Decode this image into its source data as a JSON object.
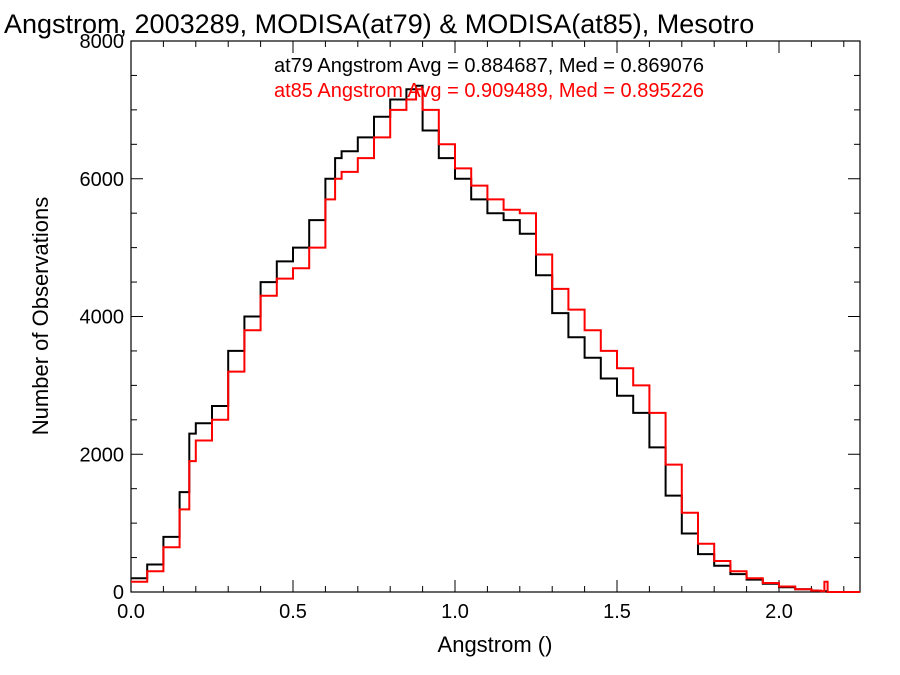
{
  "chart_data": {
    "type": "line",
    "step": true,
    "title": "Angstrom, 2003289, MODISA(at79) & MODISA(at85), Mesotro",
    "xlabel": "Angstrom ()",
    "ylabel": "Number of Observations",
    "xlim": [
      0.0,
      2.25
    ],
    "ylim": [
      0,
      8000
    ],
    "xticks": [
      0.0,
      0.5,
      1.0,
      1.5,
      2.0
    ],
    "xtick_labels": [
      "0.0",
      "0.5",
      "1.0",
      "1.5",
      "2.0"
    ],
    "yticks": [
      0,
      2000,
      4000,
      6000,
      8000
    ],
    "ytick_labels": [
      "0",
      "2000",
      "4000",
      "6000",
      "8000"
    ],
    "annotations": [
      {
        "text": "at79 Angstrom Avg = 0.884687, Med = 0.869076",
        "color": "#000000"
      },
      {
        "text": "at85 Angstrom Avg = 0.909489, Med = 0.895226",
        "color": "#ff0000"
      }
    ],
    "series": [
      {
        "name": "at79",
        "color": "#000000",
        "x": [
          0.0,
          0.05,
          0.1,
          0.15,
          0.18,
          0.2,
          0.25,
          0.3,
          0.35,
          0.4,
          0.45,
          0.5,
          0.55,
          0.6,
          0.63,
          0.65,
          0.7,
          0.75,
          0.8,
          0.85,
          0.88,
          0.9,
          0.95,
          1.0,
          1.05,
          1.1,
          1.15,
          1.2,
          1.25,
          1.3,
          1.35,
          1.4,
          1.45,
          1.5,
          1.55,
          1.6,
          1.65,
          1.7,
          1.75,
          1.8,
          1.85,
          1.9,
          1.95,
          2.0,
          2.05,
          2.1,
          2.12,
          2.15,
          2.25
        ],
        "values": [
          200,
          400,
          800,
          1450,
          2300,
          2450,
          2700,
          3500,
          4000,
          4500,
          4800,
          5000,
          5400,
          6000,
          6300,
          6400,
          6600,
          6900,
          7150,
          7300,
          7350,
          6700,
          6300,
          6000,
          5700,
          5500,
          5400,
          5200,
          4600,
          4050,
          3700,
          3400,
          3100,
          2850,
          2600,
          2100,
          1400,
          850,
          550,
          380,
          260,
          180,
          120,
          70,
          40,
          20,
          10,
          0,
          0
        ]
      },
      {
        "name": "at85",
        "color": "#ff0000",
        "x": [
          0.0,
          0.05,
          0.1,
          0.15,
          0.18,
          0.2,
          0.25,
          0.3,
          0.35,
          0.4,
          0.45,
          0.5,
          0.55,
          0.6,
          0.63,
          0.65,
          0.7,
          0.75,
          0.8,
          0.85,
          0.88,
          0.9,
          0.95,
          1.0,
          1.05,
          1.1,
          1.15,
          1.2,
          1.25,
          1.3,
          1.35,
          1.4,
          1.45,
          1.5,
          1.55,
          1.6,
          1.65,
          1.7,
          1.75,
          1.8,
          1.85,
          1.9,
          1.95,
          2.0,
          2.05,
          2.1,
          2.13,
          2.14,
          2.15,
          2.25
        ],
        "values": [
          150,
          300,
          650,
          1200,
          1900,
          2200,
          2500,
          3200,
          3800,
          4300,
          4550,
          4700,
          5000,
          5700,
          6000,
          6100,
          6300,
          6600,
          7000,
          7150,
          7300,
          7000,
          6500,
          6150,
          5900,
          5700,
          5550,
          5500,
          4900,
          4400,
          4100,
          3800,
          3500,
          3250,
          3000,
          2600,
          1850,
          1150,
          700,
          450,
          300,
          200,
          130,
          80,
          40,
          20,
          10,
          150,
          0,
          0
        ]
      }
    ]
  }
}
